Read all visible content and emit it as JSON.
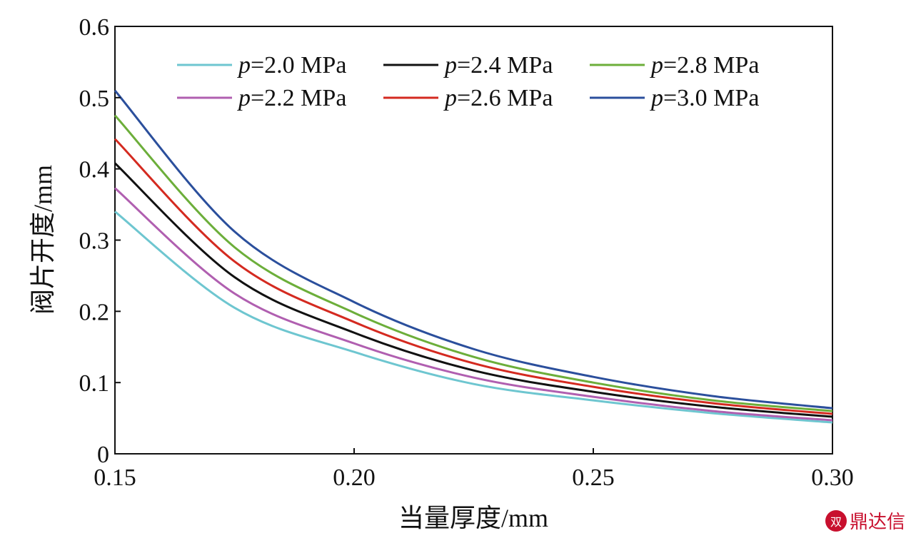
{
  "chart_data": {
    "type": "line",
    "title": "",
    "xlabel": "当量厚度/mm",
    "ylabel": "阀片开度/mm",
    "xlim": [
      0.15,
      0.3
    ],
    "ylim": [
      0,
      0.6
    ],
    "xticks": [
      0.15,
      0.2,
      0.25,
      0.3
    ],
    "xtick_labels": [
      "0.15",
      "0.20",
      "0.25",
      "0.30"
    ],
    "yticks": [
      0,
      0.1,
      0.2,
      0.3,
      0.4,
      0.5,
      0.6
    ],
    "ytick_labels": [
      "0",
      "0.1",
      "0.2",
      "0.3",
      "0.4",
      "0.5",
      "0.6"
    ],
    "grid": false,
    "legend_position": "top",
    "x": [
      0.15,
      0.175,
      0.2,
      0.225,
      0.25,
      0.275,
      0.3
    ],
    "series": [
      {
        "name": "p=2.0 MPa",
        "prefix": "p",
        "rest": "=2.0 MPa",
        "color": "#6ec6d0",
        "values": [
          0.34,
          0.205,
          0.143,
          0.098,
          0.075,
          0.057,
          0.044
        ]
      },
      {
        "name": "p=2.2 MPa",
        "prefix": "p",
        "rest": "=2.2 MPa",
        "color": "#b05fb0",
        "values": [
          0.373,
          0.225,
          0.155,
          0.107,
          0.08,
          0.06,
          0.047
        ]
      },
      {
        "name": "p=2.4 MPa",
        "prefix": "p",
        "rest": "=2.4 MPa",
        "color": "#111111",
        "values": [
          0.408,
          0.248,
          0.17,
          0.117,
          0.087,
          0.066,
          0.052
        ]
      },
      {
        "name": "p=2.6 MPa",
        "prefix": "p",
        "rest": "=2.6 MPa",
        "color": "#d42a20",
        "values": [
          0.442,
          0.27,
          0.185,
          0.127,
          0.094,
          0.071,
          0.056
        ]
      },
      {
        "name": "p=2.8 MPa",
        "prefix": "p",
        "rest": "=2.8 MPa",
        "color": "#6cae3a",
        "values": [
          0.475,
          0.29,
          0.198,
          0.136,
          0.1,
          0.075,
          0.06
        ]
      },
      {
        "name": "p=3.0 MPa",
        "prefix": "p",
        "rest": "=3.0 MPa",
        "color": "#2b4f9c",
        "values": [
          0.51,
          0.312,
          0.213,
          0.147,
          0.108,
          0.081,
          0.064
        ]
      }
    ]
  },
  "watermark": {
    "icon": "dx-logo-icon",
    "text": "鼎达信"
  }
}
